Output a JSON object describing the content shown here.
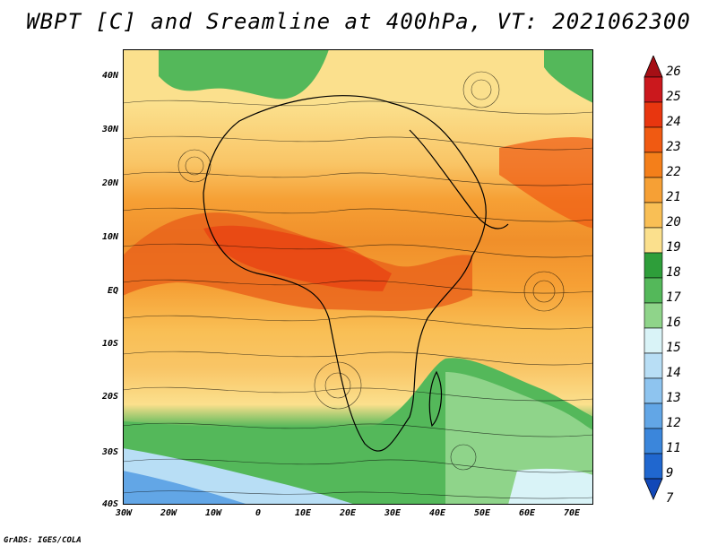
{
  "title": "WBPT [C] and Sreamline at 400hPa, VT: 2021062300",
  "credit": "GrADS: IGES/COLA",
  "map": {
    "lat_labels": [
      "40N",
      "30N",
      "20N",
      "10N",
      "EQ",
      "10S",
      "20S",
      "30S",
      "40S"
    ],
    "lon_labels": [
      "30W",
      "20W",
      "10W",
      "0",
      "10E",
      "20E",
      "30E",
      "40E",
      "50E",
      "60E",
      "70E"
    ],
    "lat_range": [
      -40,
      45
    ],
    "lon_range": [
      -30,
      75
    ]
  },
  "colorbar": {
    "labels": [
      "26",
      "25",
      "24",
      "23",
      "22",
      "21",
      "20",
      "19",
      "18",
      "17",
      "16",
      "15",
      "14",
      "13",
      "12",
      "11",
      "9",
      "7"
    ],
    "colors": [
      "#a50f15",
      "#cb181d",
      "#e8360f",
      "#f05a12",
      "#f47f1a",
      "#f6a035",
      "#f9bf55",
      "#fbe08d",
      "#2e9e3a",
      "#54b85a",
      "#8fd48a",
      "#d9f3f7",
      "#b8def5",
      "#8ec4ef",
      "#62a6e6",
      "#3b86db",
      "#2067cf",
      "#1248b8"
    ]
  }
}
